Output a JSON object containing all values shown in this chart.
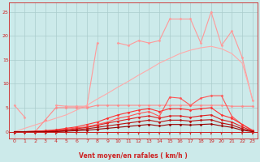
{
  "xlabel": "Vent moyen/en rafales ( km/h )",
  "bg_color": "#cceaea",
  "grid_color": "#aacccc",
  "x_ticks": [
    0,
    1,
    2,
    3,
    4,
    5,
    6,
    7,
    8,
    9,
    10,
    11,
    12,
    13,
    14,
    15,
    16,
    17,
    18,
    19,
    20,
    21,
    22,
    23
  ],
  "y_ticks": [
    0,
    5,
    10,
    15,
    20,
    25
  ],
  "xlim": [
    -0.5,
    23.5
  ],
  "ylim": [
    -1.5,
    27
  ],
  "series": [
    {
      "color": "#ff9999",
      "lw": 0.8,
      "marker": "D",
      "ms": 1.5,
      "y": [
        5.5,
        3.0,
        null,
        null,
        5.5,
        5.3,
        5.3,
        5.3,
        18.5,
        null,
        18.5,
        18.0,
        19.0,
        18.5,
        19.0,
        23.5,
        23.5,
        23.5,
        18.5,
        25.0,
        18.0,
        21.0,
        15.5,
        6.5
      ]
    },
    {
      "color": "#ffaaaa",
      "lw": 0.8,
      "marker": null,
      "ms": 0,
      "y": [
        0.0,
        0.7,
        1.4,
        2.1,
        2.8,
        3.5,
        4.5,
        5.5,
        6.8,
        8.0,
        9.3,
        10.5,
        11.8,
        13.0,
        14.3,
        15.3,
        16.3,
        17.0,
        17.5,
        17.8,
        17.3,
        16.3,
        14.3,
        6.8
      ]
    },
    {
      "color": "#ff8888",
      "lw": 0.8,
      "marker": "D",
      "ms": 1.5,
      "y": [
        0.0,
        0.0,
        0.0,
        2.5,
        5.0,
        5.0,
        5.0,
        5.0,
        5.5,
        5.5,
        5.5,
        5.5,
        5.5,
        5.5,
        5.5,
        5.5,
        5.5,
        5.5,
        5.5,
        5.5,
        5.5,
        5.3,
        5.3,
        5.3
      ]
    },
    {
      "color": "#ff5555",
      "lw": 0.8,
      "marker": "D",
      "ms": 1.5,
      "y": [
        0.0,
        0.0,
        0.1,
        0.2,
        0.3,
        0.5,
        0.8,
        1.0,
        1.5,
        2.0,
        2.8,
        3.2,
        3.8,
        4.2,
        3.2,
        7.2,
        7.0,
        5.5,
        7.0,
        7.5,
        7.5,
        3.2,
        1.5,
        0.3
      ]
    },
    {
      "color": "#ff3333",
      "lw": 0.8,
      "marker": "D",
      "ms": 1.5,
      "y": [
        0.0,
        0.0,
        0.1,
        0.2,
        0.4,
        0.7,
        1.0,
        1.5,
        2.0,
        2.8,
        3.5,
        4.0,
        4.5,
        4.8,
        4.2,
        4.8,
        4.8,
        4.5,
        4.8,
        5.0,
        3.5,
        2.8,
        1.5,
        0.2
      ]
    },
    {
      "color": "#dd2222",
      "lw": 0.8,
      "marker": "D",
      "ms": 1.5,
      "y": [
        0.0,
        0.0,
        0.0,
        0.1,
        0.2,
        0.4,
        0.6,
        0.9,
        1.3,
        1.8,
        2.2,
        2.6,
        3.0,
        3.3,
        2.8,
        3.3,
        3.3,
        3.0,
        3.3,
        3.5,
        2.5,
        2.0,
        1.0,
        0.1
      ]
    },
    {
      "color": "#bb1111",
      "lw": 0.8,
      "marker": "D",
      "ms": 1.5,
      "y": [
        0.0,
        0.0,
        0.0,
        0.0,
        0.1,
        0.2,
        0.4,
        0.6,
        0.9,
        1.2,
        1.5,
        1.8,
        2.1,
        2.4,
        2.0,
        2.4,
        2.4,
        2.2,
        2.4,
        2.5,
        1.8,
        1.4,
        0.6,
        0.05
      ]
    },
    {
      "color": "#990000",
      "lw": 0.8,
      "marker": "D",
      "ms": 1.5,
      "y": [
        0.0,
        0.0,
        0.0,
        0.0,
        0.0,
        0.1,
        0.2,
        0.3,
        0.5,
        0.7,
        0.9,
        1.1,
        1.3,
        1.5,
        1.2,
        1.5,
        1.5,
        1.4,
        1.5,
        1.6,
        1.2,
        0.9,
        0.3,
        0.0
      ]
    }
  ]
}
